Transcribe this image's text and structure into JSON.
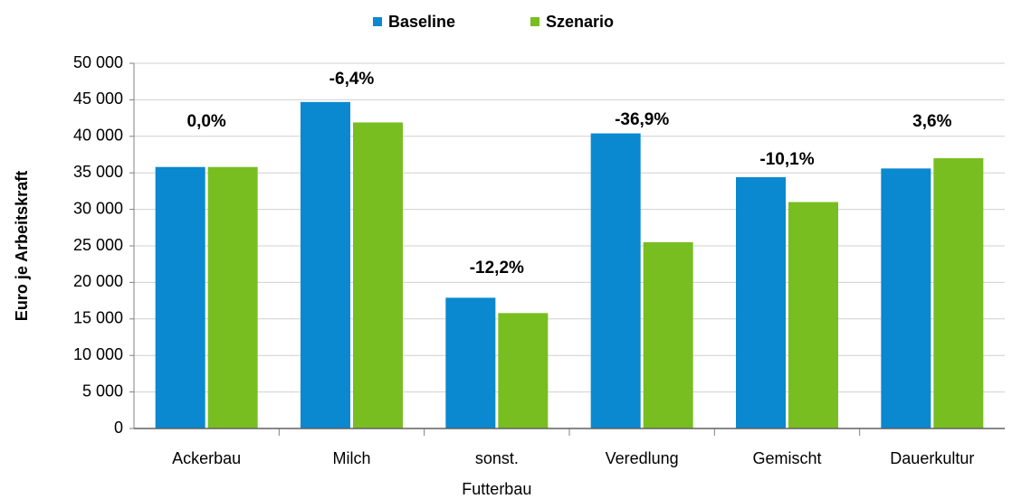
{
  "chart_data": {
    "type": "bar",
    "ylabel": "Euro je Arbeitskraft",
    "categories": [
      "Ackerbau",
      "Milch",
      "sonst. Futterbau",
      "Veredlung",
      "Gemischt",
      "Dauerkultur"
    ],
    "series": [
      {
        "name": "Baseline",
        "color": "#0a88d0",
        "values": [
          35800,
          44700,
          17900,
          40400,
          34400,
          35600
        ]
      },
      {
        "name": "Szenario",
        "color": "#78be20",
        "values": [
          35800,
          41900,
          15800,
          25500,
          31000,
          37000
        ]
      }
    ],
    "annotations": [
      "0,0%",
      "-6,4%",
      "-12,2%",
      "-36,9%",
      "-10,1%",
      "3,6%"
    ],
    "ylim": [
      0,
      50000
    ],
    "yticks": [
      0,
      {
        "value": 5000,
        "label": "5 000"
      },
      {
        "value": 10000,
        "label": "10 000"
      },
      {
        "value": 15000,
        "label": "15 000"
      },
      {
        "value": 20000,
        "label": "20 000"
      },
      {
        "value": 25000,
        "label": "25 000"
      },
      {
        "value": 30000,
        "label": "30 000"
      },
      {
        "value": 35000,
        "label": "35 000"
      },
      {
        "value": 40000,
        "label": "40 000"
      },
      {
        "value": 45000,
        "label": "45 000"
      },
      {
        "value": 50000,
        "label": "50 000"
      }
    ],
    "grid": true,
    "legend": "top"
  }
}
